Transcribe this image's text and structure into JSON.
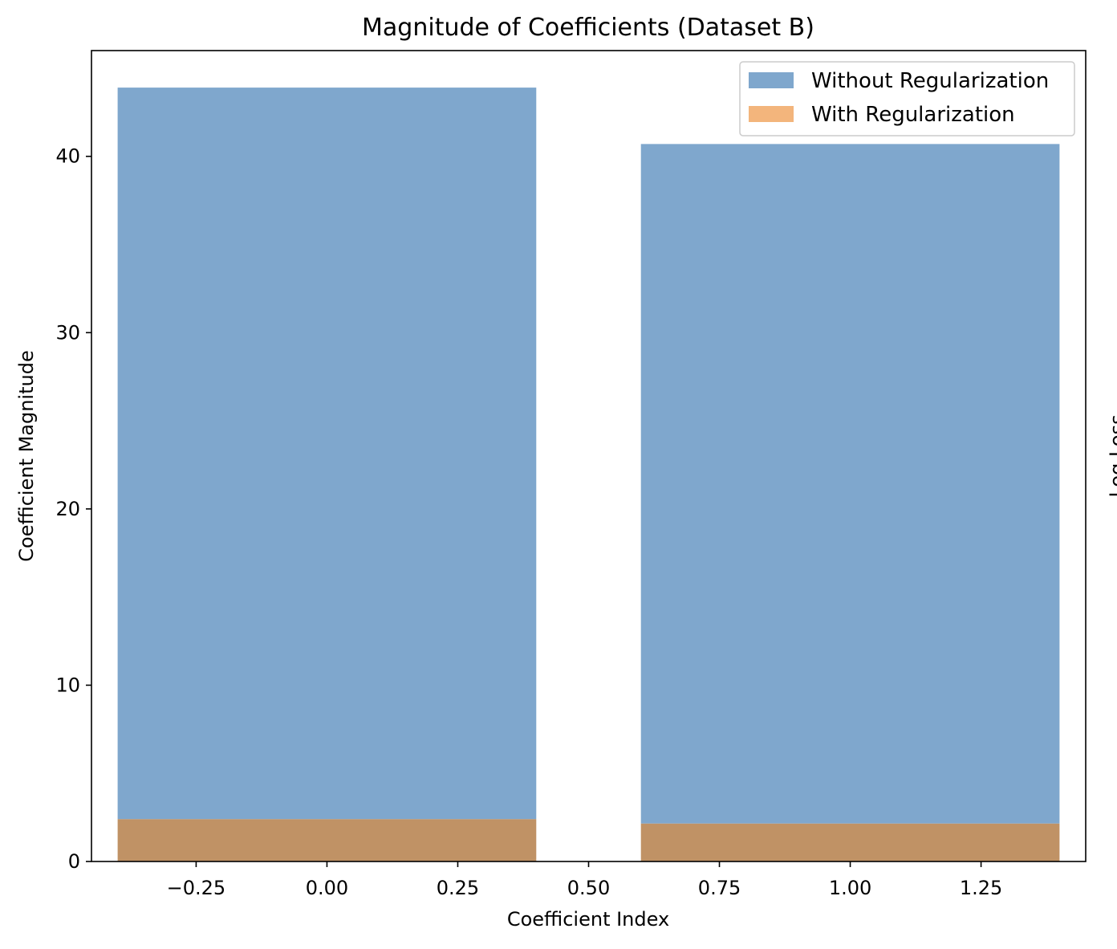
{
  "chart_data": {
    "type": "bar",
    "title": "Magnitude of Coefficients (Dataset B)",
    "xlabel": "Coefficient Index",
    "ylabel": "Coefficient Magnitude",
    "secondary_ylabel": "Log Loss",
    "xlim": [
      -0.45,
      1.45
    ],
    "ylim": [
      0,
      46
    ],
    "xticks": [
      -0.25,
      0.0,
      0.25,
      0.5,
      0.75,
      1.0,
      1.25
    ],
    "xtick_labels": [
      "−0.25",
      "0.00",
      "0.25",
      "0.50",
      "0.75",
      "1.00",
      "1.25"
    ],
    "yticks": [
      0,
      10,
      20,
      30,
      40
    ],
    "ytick_labels": [
      "0",
      "10",
      "20",
      "30",
      "40"
    ],
    "bar_width": 0.8,
    "x": [
      0,
      1
    ],
    "grid": false,
    "legend_position": "top-right",
    "series": [
      {
        "name": "Without Regularization",
        "values": [
          43.9,
          40.7
        ],
        "color": "#7fa7cd"
      },
      {
        "name": "With Regularization",
        "values": [
          2.4,
          2.15
        ],
        "color": "#f3b57c"
      }
    ],
    "overlap_color": "#c09265"
  }
}
